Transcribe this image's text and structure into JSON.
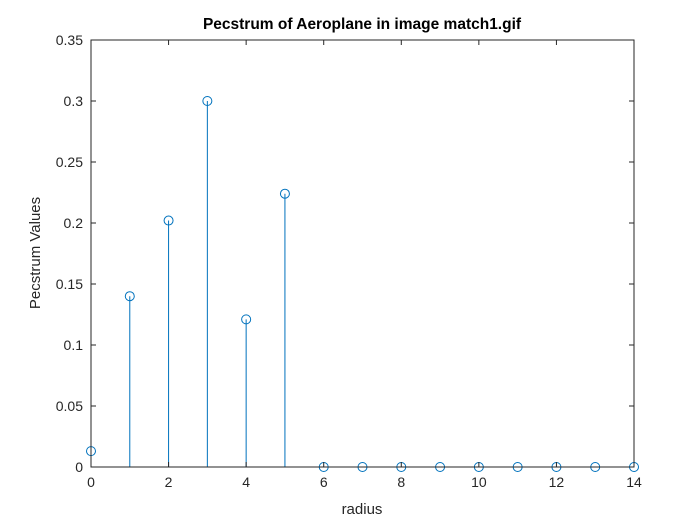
{
  "chart_data": {
    "type": "stem",
    "title": "Pecstrum of Aeroplane in image match1.gif",
    "xlabel": "radius",
    "ylabel": "Pecstrum Values",
    "xlim": [
      0,
      14
    ],
    "ylim": [
      0,
      0.35
    ],
    "x_ticks": [
      0,
      2,
      4,
      6,
      8,
      10,
      12,
      14
    ],
    "x_tick_labels": [
      "0",
      "2",
      "4",
      "6",
      "8",
      "10",
      "12",
      "14"
    ],
    "y_ticks": [
      0,
      0.05,
      0.1,
      0.15,
      0.2,
      0.25,
      0.3,
      0.35
    ],
    "y_tick_labels": [
      "0",
      "0.05",
      "0.1",
      "0.15",
      "0.2",
      "0.25",
      "0.3",
      "0.35"
    ],
    "grid": false,
    "x": [
      0,
      1,
      2,
      3,
      4,
      5,
      6,
      7,
      8,
      9,
      10,
      11,
      12,
      13,
      14
    ],
    "values": [
      0.013,
      0.14,
      0.202,
      0.3,
      0.121,
      0.224,
      0,
      0,
      0,
      0,
      0,
      0,
      0,
      0,
      0
    ],
    "color": "#0072bd",
    "marker": "circle"
  }
}
